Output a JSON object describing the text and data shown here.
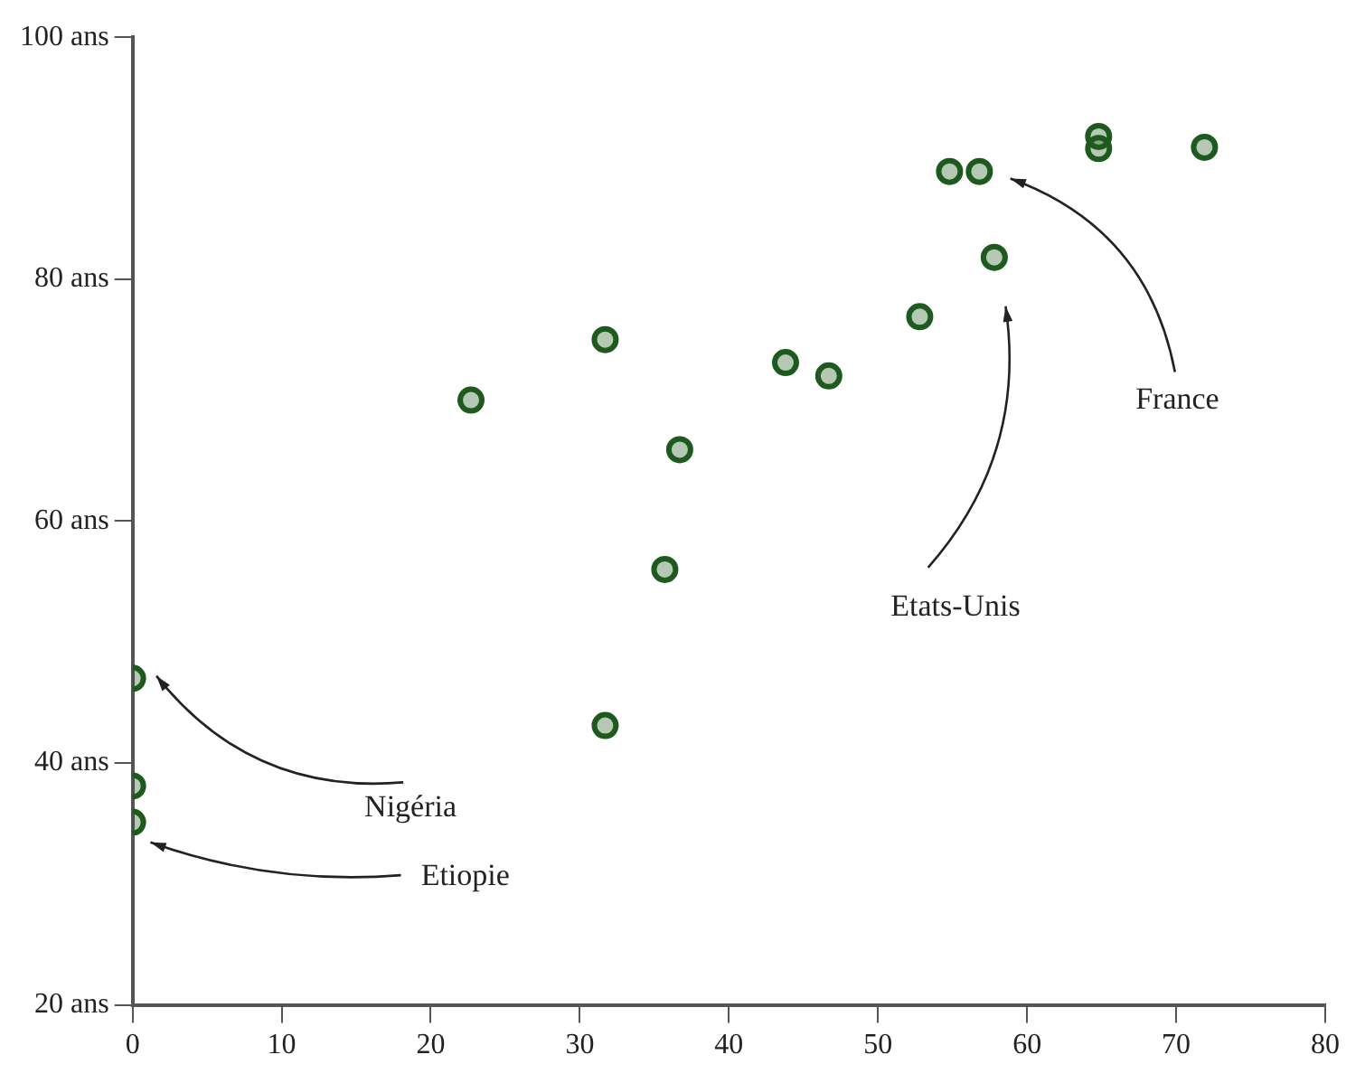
{
  "chart_data": {
    "type": "scatter",
    "marker": "circle",
    "x": [
      0,
      0,
      0,
      22.7,
      31.7,
      31.7,
      36.7,
      35.7,
      43.8,
      46.7,
      52.8,
      54.8,
      56.8,
      57.8,
      64.8,
      64.8,
      71.9
    ],
    "series": [
      {
        "color": "#1e5a1e",
        "values": [
          47,
          38.1,
          35.1,
          70,
          75,
          43.1,
          65.9,
          56,
          73.1,
          72,
          76.9,
          88.9,
          88.9,
          81.8,
          91.8,
          90.8,
          90.9
        ]
      }
    ],
    "xlim": [
      0,
      80
    ],
    "xticks": [
      0,
      10,
      20,
      30,
      40,
      50,
      60,
      70,
      80
    ],
    "ylim": [
      20,
      100
    ],
    "yticks": [
      {
        "value": 20,
        "label": "20 ans"
      },
      {
        "value": 40,
        "label": "40 ans"
      },
      {
        "value": 60,
        "label": "60 ans"
      },
      {
        "value": 80,
        "label": "80 ans"
      },
      {
        "value": 100,
        "label": "100 ans"
      }
    ],
    "annotations": [
      "Nigéria",
      "Etiopie",
      "Etats-Unis",
      "France"
    ]
  }
}
